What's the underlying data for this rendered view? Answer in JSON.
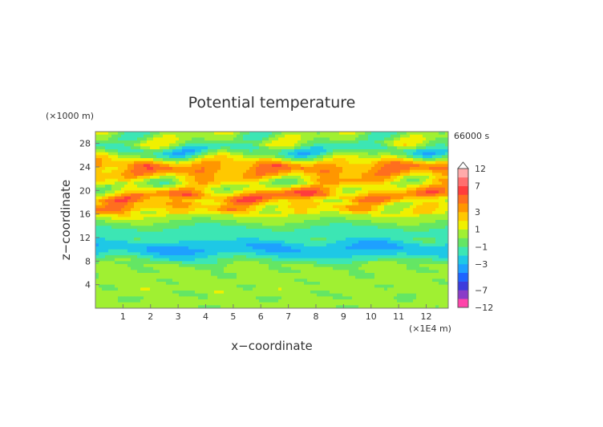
{
  "chart_data": {
    "type": "heatmap",
    "title": "Potential temperature",
    "xlabel": "x−coordinate",
    "ylabel": "z−coordinate",
    "x_units": "(×1E4 m)",
    "y_units": "(×1000 m)",
    "time_label": "66000 s",
    "xlim": [
      0,
      12.8
    ],
    "ylim": [
      0,
      30
    ],
    "x_ticks": [
      "1",
      "2",
      "3",
      "4",
      "5",
      "6",
      "7",
      "8",
      "9",
      "10",
      "11",
      "12"
    ],
    "y_ticks": [
      "4",
      "8",
      "12",
      "16",
      "20",
      "24",
      "28"
    ],
    "colorbar": {
      "labels": [
        "12",
        "7",
        "3",
        "1",
        "−1",
        "−3",
        "−7",
        "−12"
      ],
      "levels": [
        -12,
        -9,
        -7,
        -5,
        -4,
        -3,
        -2,
        -1,
        0,
        1,
        2,
        3,
        4,
        5,
        7,
        9,
        12
      ],
      "colors": [
        "#ff44aa",
        "#8a3cc8",
        "#3c3cdc",
        "#1e64ff",
        "#1ea0ff",
        "#1ec8e6",
        "#3ce6b4",
        "#64e664",
        "#a0f032",
        "#f0f000",
        "#ffc800",
        "#ff9600",
        "#ff6e1e",
        "#ff3c3c",
        "#ff6e6e",
        "#ffaaaa"
      ]
    },
    "x": [
      0,
      0.5,
      1,
      1.5,
      2,
      2.5,
      3,
      3.5,
      4,
      4.5,
      5,
      5.5,
      6,
      6.5,
      7,
      7.5,
      8,
      8.5,
      9,
      9.5,
      10,
      10.5,
      11,
      11.5,
      12,
      12.5,
      12.8
    ],
    "z_profile": [
      {
        "z": 0.0,
        "v": 0.3
      },
      {
        "z": 1.0,
        "v": 0.6
      },
      {
        "z": 2.0,
        "v": 0.0
      },
      {
        "z": 3.0,
        "v": 0.7
      },
      {
        "z": 4.0,
        "v": 0.2
      },
      {
        "z": 5.0,
        "v": 0.6
      },
      {
        "z": 6.0,
        "v": 0.1
      },
      {
        "z": 7.0,
        "v": 0.4
      },
      {
        "z": 8.0,
        "v": -0.8
      },
      {
        "z": 9.0,
        "v": -2.2
      },
      {
        "z": 10.0,
        "v": -3.2
      },
      {
        "z": 11.0,
        "v": -2.6
      },
      {
        "z": 12.0,
        "v": -1.2
      },
      {
        "z": 13.0,
        "v": -1.9
      },
      {
        "z": 14.0,
        "v": -0.7
      },
      {
        "z": 15.0,
        "v": 0.2
      },
      {
        "z": 16.0,
        "v": 1.0
      },
      {
        "z": 17.0,
        "v": 2.6
      },
      {
        "z": 18.0,
        "v": 1.2
      },
      {
        "z": 19.0,
        "v": 3.4
      },
      {
        "z": 20.0,
        "v": 1.5
      },
      {
        "z": 21.0,
        "v": 0.3
      },
      {
        "z": 22.0,
        "v": 2.2
      },
      {
        "z": 23.0,
        "v": 3.2
      },
      {
        "z": 24.0,
        "v": 4.2
      },
      {
        "z": 25.0,
        "v": 2.0
      },
      {
        "z": 26.0,
        "v": -0.7
      },
      {
        "z": 27.0,
        "v": -1.8
      },
      {
        "z": 28.0,
        "v": 0.3
      },
      {
        "z": 29.0,
        "v": 0.1
      },
      {
        "z": 30.0,
        "v": 0.0
      }
    ]
  }
}
